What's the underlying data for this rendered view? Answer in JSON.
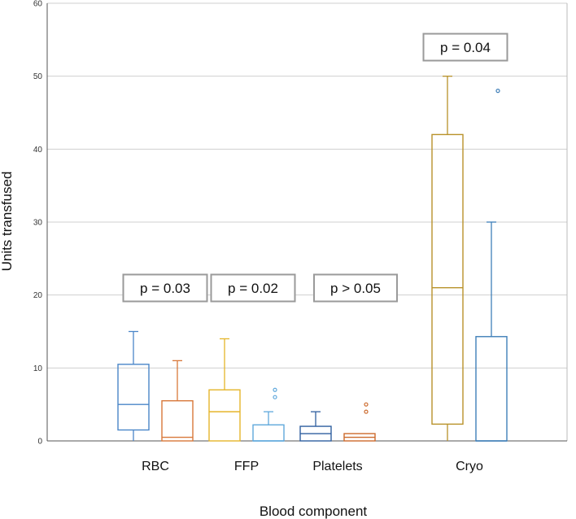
{
  "chart_data": {
    "type": "boxplot",
    "xlabel": "Blood component",
    "ylabel": "Units transfused",
    "ylim": [
      0,
      60
    ],
    "yticks": [
      0,
      10,
      20,
      30,
      40,
      50,
      60
    ],
    "grid": true,
    "categories": [
      "RBC",
      "FFP",
      "Platelets",
      "Cryo"
    ],
    "annotations": [
      "p = 0.03",
      "p = 0.02",
      "p > 0.05",
      "p = 0.04"
    ],
    "boxes": [
      {
        "category": "RBC",
        "color": "#4a86c8",
        "min": 0,
        "q1": 1.5,
        "median": 5,
        "q3": 10.5,
        "max": 15,
        "outliers": []
      },
      {
        "category": "RBC",
        "color": "#d8783a",
        "min": 0,
        "q1": 0,
        "median": 0.5,
        "q3": 5.5,
        "max": 11,
        "outliers": []
      },
      {
        "category": "FFP",
        "color": "#e5b52a",
        "min": 0,
        "q1": 0,
        "median": 4,
        "q3": 7,
        "max": 14,
        "outliers": []
      },
      {
        "category": "FFP",
        "color": "#5fa8dc",
        "min": 0,
        "q1": 0,
        "median": 0,
        "q3": 2.2,
        "max": 4,
        "outliers": [
          6,
          7
        ]
      },
      {
        "category": "Platelets",
        "color": "#2f5f9f",
        "min": 0,
        "q1": 0,
        "median": 1,
        "q3": 2,
        "max": 4,
        "outliers": []
      },
      {
        "category": "Platelets",
        "color": "#cc6a2c",
        "min": 0,
        "q1": 0,
        "median": 0.5,
        "q3": 1,
        "max": 1,
        "outliers": [
          4,
          5
        ]
      },
      {
        "category": "Cryo",
        "color": "#b8922a",
        "min": 0,
        "q1": 2.3,
        "median": 21,
        "q3": 42,
        "max": 50,
        "outliers": []
      },
      {
        "category": "Cryo",
        "color": "#3f7fb8",
        "min": 0,
        "q1": 0,
        "median": 0,
        "q3": 14.3,
        "max": 30,
        "outliers": [
          48
        ]
      }
    ]
  }
}
